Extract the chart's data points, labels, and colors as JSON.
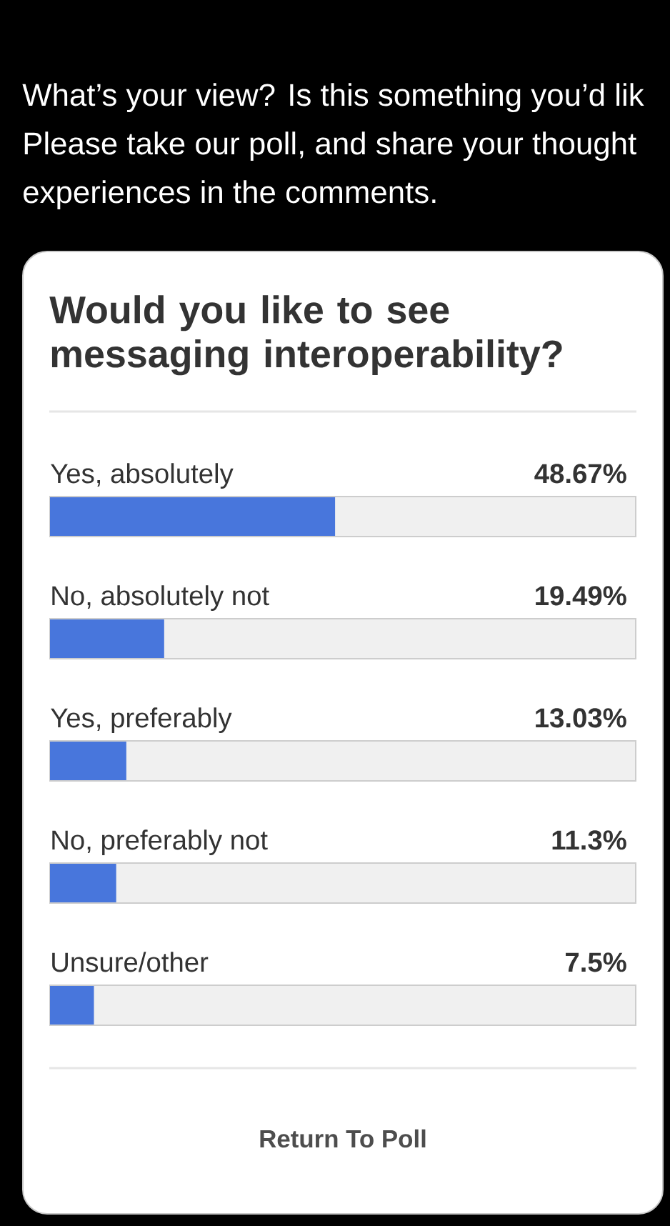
{
  "chart_data": {
    "type": "bar",
    "orientation": "horizontal",
    "title": "Would you like to see messaging interoperability?",
    "categories": [
      "Yes, absolutely",
      "No, absolutely not",
      "Yes, preferably",
      "No, preferably not",
      "Unsure/other"
    ],
    "values": [
      48.67,
      19.49,
      13.03,
      11.3,
      7.5
    ],
    "value_labels": [
      "48.67%",
      "19.49%",
      "13.03%",
      "11.3%",
      "7.5%"
    ],
    "color": "#4876dc",
    "xlim": [
      0,
      100
    ],
    "tick_labels": "y",
    "annotations": [
      "What’s your view? Is this something you’d lik",
      "Please take our poll, and share your thought",
      "experiences in the comments.",
      "Return To Poll"
    ]
  }
}
